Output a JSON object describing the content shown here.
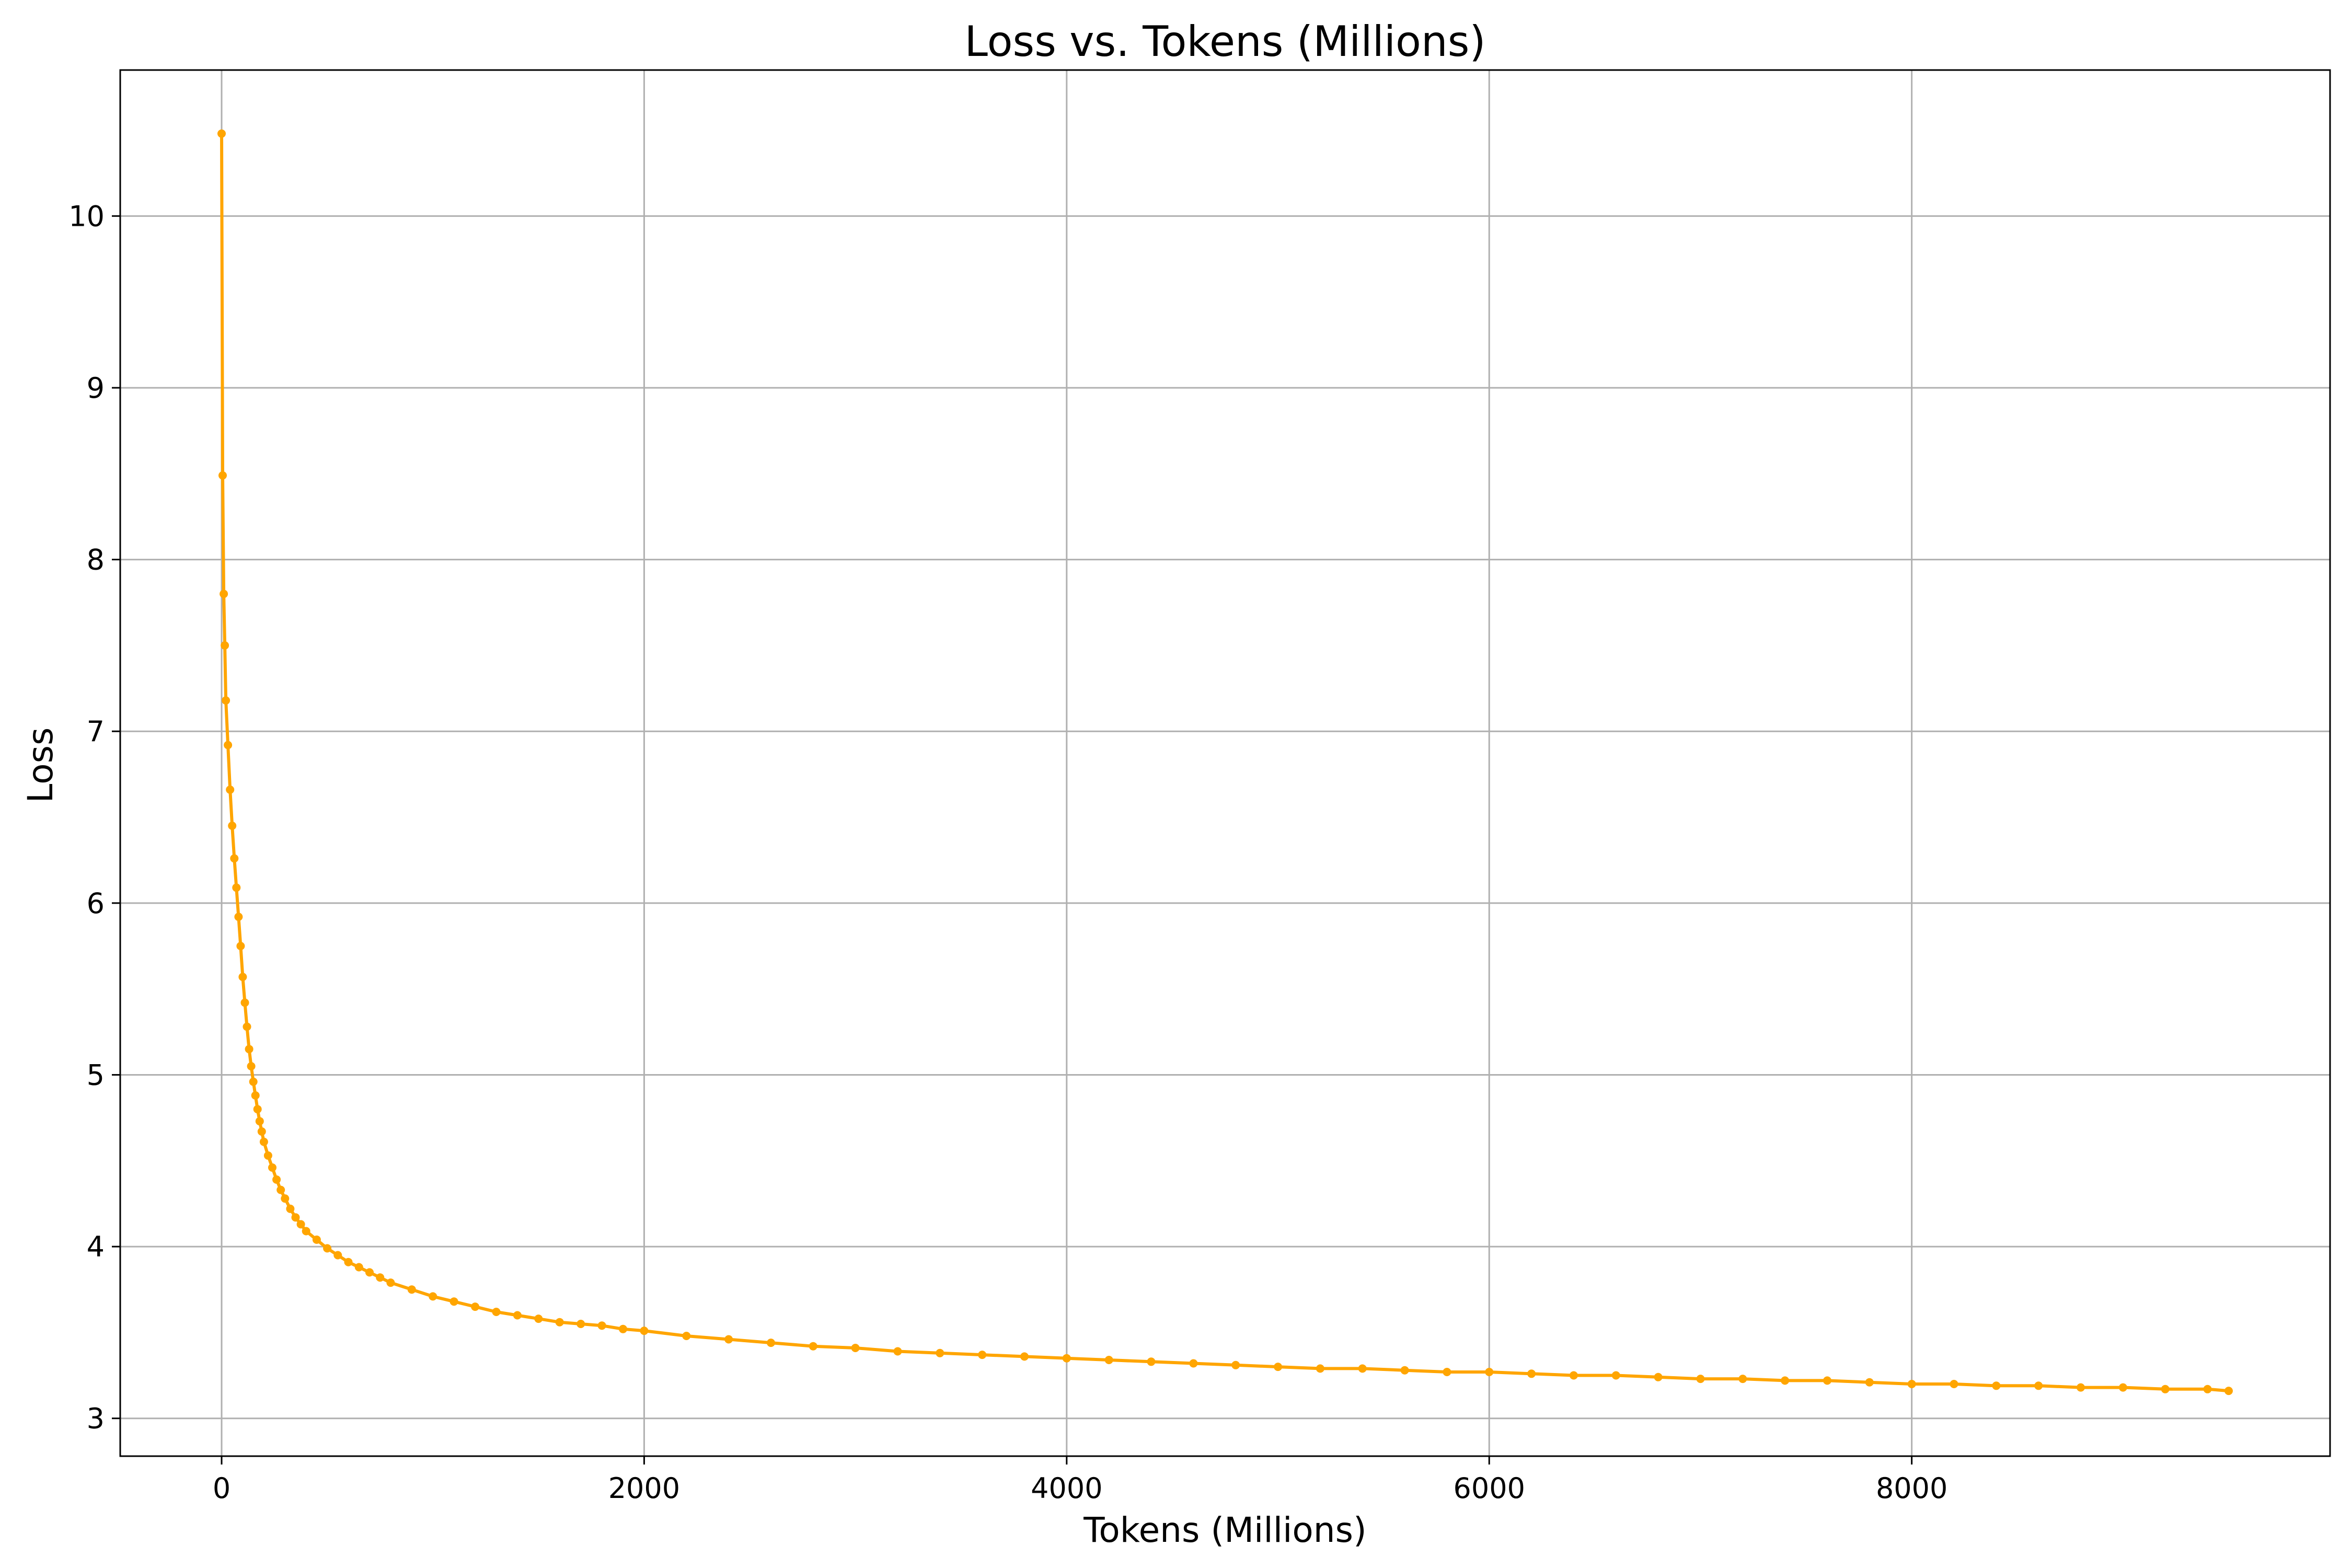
{
  "chart_data": {
    "type": "line",
    "title": "Loss vs. Tokens (Millions)",
    "xlabel": "Tokens (Millions)",
    "ylabel": "Loss",
    "xlim": [
      -480,
      9980
    ],
    "ylim": [
      2.78,
      10.85
    ],
    "xticks": [
      0,
      2000,
      4000,
      6000,
      8000
    ],
    "yticks": [
      3,
      4,
      5,
      6,
      7,
      8,
      9,
      10
    ],
    "grid": true,
    "legend": "none",
    "series": [
      {
        "color": "#ffa500",
        "marker": "circle",
        "x": [
          0,
          5,
          10,
          15,
          20,
          30,
          40,
          50,
          60,
          70,
          80,
          90,
          100,
          110,
          120,
          130,
          140,
          150,
          160,
          170,
          180,
          190,
          200,
          220,
          240,
          260,
          280,
          300,
          325,
          350,
          375,
          400,
          450,
          500,
          550,
          600,
          650,
          700,
          750,
          800,
          900,
          1000,
          1100,
          1200,
          1300,
          1400,
          1500,
          1600,
          1700,
          1800,
          1900,
          2000,
          2200,
          2400,
          2600,
          2800,
          3000,
          3200,
          3400,
          3600,
          3800,
          4000,
          4200,
          4400,
          4600,
          4800,
          5000,
          5200,
          5400,
          5600,
          5800,
          6000,
          6200,
          6400,
          6600,
          6800,
          7000,
          7200,
          7400,
          7600,
          7800,
          8000,
          8200,
          8400,
          8600,
          8800,
          9000,
          9200,
          9400,
          9500
        ],
        "y": [
          10.48,
          8.49,
          7.8,
          7.5,
          7.18,
          6.92,
          6.66,
          6.45,
          6.26,
          6.09,
          5.92,
          5.75,
          5.57,
          5.42,
          5.28,
          5.15,
          5.05,
          4.96,
          4.88,
          4.8,
          4.73,
          4.67,
          4.61,
          4.53,
          4.46,
          4.39,
          4.33,
          4.28,
          4.22,
          4.17,
          4.13,
          4.09,
          4.04,
          3.99,
          3.95,
          3.91,
          3.88,
          3.85,
          3.82,
          3.79,
          3.75,
          3.71,
          3.68,
          3.65,
          3.62,
          3.6,
          3.58,
          3.56,
          3.55,
          3.54,
          3.52,
          3.51,
          3.48,
          3.46,
          3.44,
          3.42,
          3.41,
          3.39,
          3.38,
          3.37,
          3.36,
          3.35,
          3.34,
          3.33,
          3.32,
          3.31,
          3.3,
          3.29,
          3.29,
          3.28,
          3.27,
          3.27,
          3.26,
          3.25,
          3.25,
          3.24,
          3.23,
          3.23,
          3.22,
          3.22,
          3.21,
          3.2,
          3.2,
          3.19,
          3.19,
          3.18,
          3.18,
          3.17,
          3.17,
          3.16
        ]
      }
    ]
  }
}
